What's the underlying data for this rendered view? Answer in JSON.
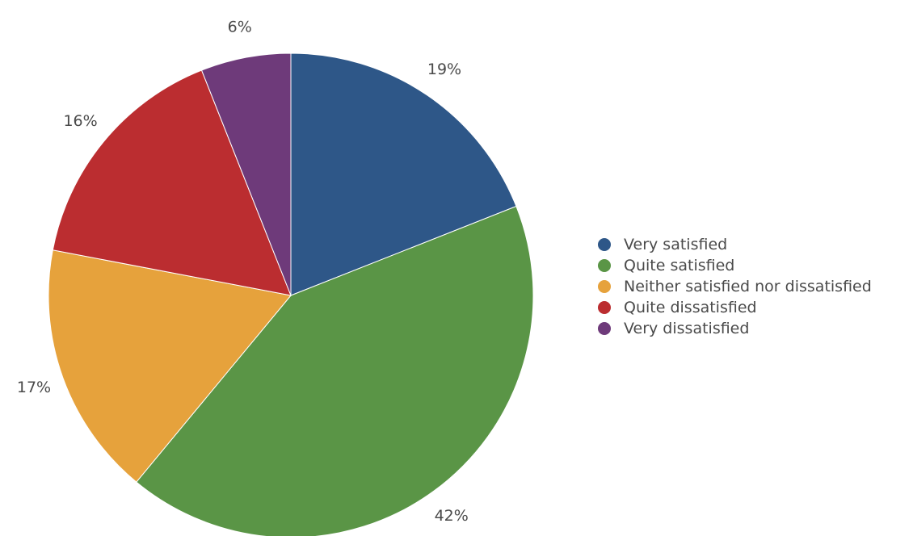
{
  "chart_data": {
    "type": "pie",
    "title": "",
    "start_angle_deg": 0,
    "direction": "clockwise",
    "legend_position": "right",
    "slices": [
      {
        "label": "Very satisfied",
        "value": 19,
        "display": "19%",
        "color": "#2e5788"
      },
      {
        "label": "Quite satisfied",
        "value": 42,
        "display": "42%",
        "color": "#5a9546"
      },
      {
        "label": "Neither satisfied nor dissatisfied",
        "value": 17,
        "display": "17%",
        "color": "#e6a23c"
      },
      {
        "label": "Quite dissatisfied",
        "value": 16,
        "display": "16%",
        "color": "#bb2d30"
      },
      {
        "label": "Very dissatisfied",
        "value": 6,
        "display": "6%",
        "color": "#6e3a7a"
      }
    ]
  }
}
